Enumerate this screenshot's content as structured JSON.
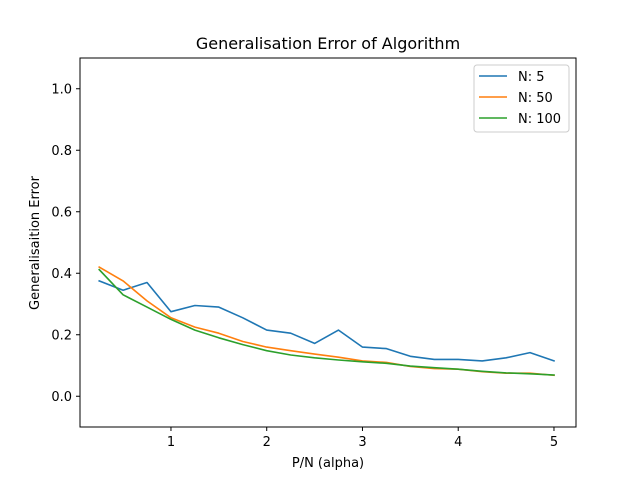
{
  "chart_data": {
    "type": "line",
    "title": "Generalisation Error of Algorithm",
    "xlabel": "P/N (alpha)",
    "ylabel": "Generalisaition Error",
    "xlim": [
      0.05,
      5.23
    ],
    "ylim": [
      -0.1,
      1.1
    ],
    "xticks": [
      1,
      2,
      3,
      4,
      5
    ],
    "yticks": [
      0.0,
      0.2,
      0.4,
      0.6,
      0.8,
      1.0
    ],
    "xtick_labels": [
      "1",
      "2",
      "3",
      "4",
      "5"
    ],
    "ytick_labels": [
      "0.0",
      "0.2",
      "0.4",
      "0.6",
      "0.8",
      "1.0"
    ],
    "grid": false,
    "legend_position": "top-right",
    "x": [
      0.25,
      0.5,
      0.75,
      1.0,
      1.25,
      1.5,
      1.75,
      2.0,
      2.25,
      2.5,
      2.75,
      3.0,
      3.25,
      3.5,
      3.75,
      4.0,
      4.25,
      4.5,
      4.75,
      5.0
    ],
    "series": [
      {
        "name": "N: 5",
        "color": "#1f77b4",
        "values": [
          0.375,
          0.345,
          0.37,
          0.275,
          0.295,
          0.29,
          0.255,
          0.215,
          0.205,
          0.172,
          0.215,
          0.16,
          0.155,
          0.13,
          0.12,
          0.12,
          0.115,
          0.125,
          0.142,
          0.115
        ]
      },
      {
        "name": "N: 50",
        "color": "#ff7f0e",
        "values": [
          0.42,
          0.375,
          0.31,
          0.255,
          0.225,
          0.205,
          0.178,
          0.16,
          0.148,
          0.137,
          0.127,
          0.115,
          0.11,
          0.097,
          0.09,
          0.088,
          0.08,
          0.075,
          0.075,
          0.068
        ]
      },
      {
        "name": "N: 100",
        "color": "#2ca02c",
        "values": [
          0.412,
          0.33,
          0.29,
          0.25,
          0.215,
          0.19,
          0.168,
          0.148,
          0.134,
          0.125,
          0.118,
          0.112,
          0.107,
          0.098,
          0.093,
          0.088,
          0.081,
          0.076,
          0.073,
          0.069
        ]
      }
    ]
  }
}
